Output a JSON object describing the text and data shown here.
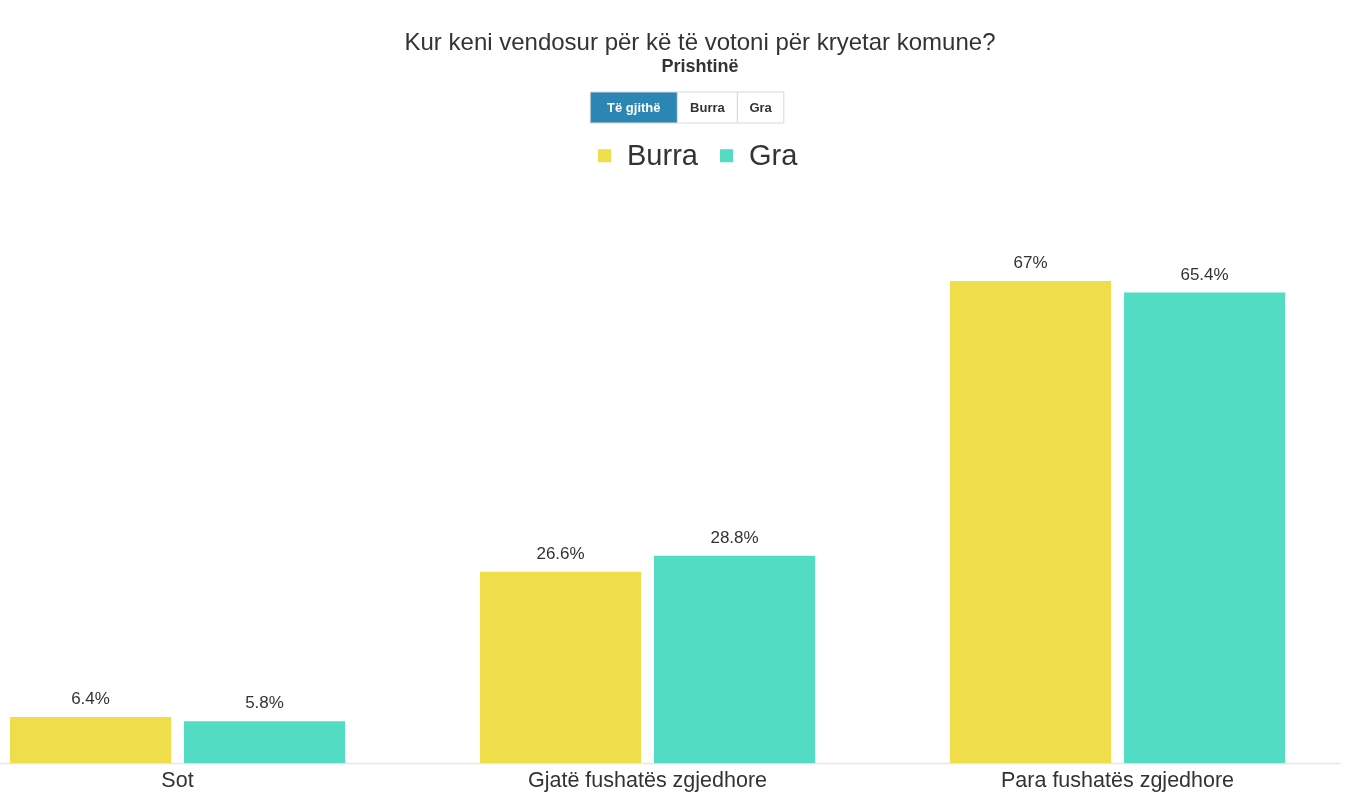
{
  "chart_data": {
    "type": "bar",
    "title": "Kur keni vendosur për kë të votoni për kryetar komune?",
    "subtitle": "Prishtinë",
    "categories": [
      "Sot",
      "Gjatë fushatës zgjedhore",
      "Para fushatës zgjedhore"
    ],
    "series": [
      {
        "name": "Burra",
        "color": "#f0dd4a",
        "values": [
          6.4,
          26.6,
          67
        ],
        "value_labels": [
          "6.4%",
          "26.6%",
          "67%"
        ]
      },
      {
        "name": "Gra",
        "color": "#52dcc4",
        "values": [
          5.8,
          28.8,
          65.4
        ],
        "value_labels": [
          "5.8%",
          "28.8%",
          "65.4%"
        ]
      }
    ],
    "legend": "top",
    "annotations": [
      "Të gjithë",
      "Burra",
      "Gra"
    ]
  }
}
